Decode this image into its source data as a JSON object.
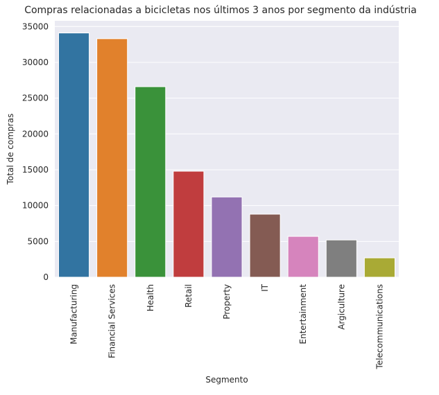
{
  "chart_data": {
    "type": "bar",
    "title": "Compras relacionadas a bicicletas nos últimos 3 anos por segmento da indústria",
    "xlabel": "Segmento",
    "ylabel": "Total de compras",
    "categories": [
      "Manufacturing",
      "Financial Services",
      "Health",
      "Retail",
      "Property",
      "IT",
      "Entertainment",
      "Argiculture",
      "Telecommunications"
    ],
    "values": [
      34100,
      33300,
      26600,
      14800,
      11200,
      8800,
      5700,
      5200,
      2700
    ],
    "colors": [
      "#3274a1",
      "#e1812c",
      "#3a923a",
      "#c03d3e",
      "#9372b2",
      "#845b53",
      "#d684bd",
      "#7f7f7f",
      "#a9aa35"
    ],
    "ylim": [
      0,
      35800
    ],
    "yticks": [
      0,
      5000,
      10000,
      15000,
      20000,
      25000,
      30000,
      35000
    ],
    "ytick_labels": [
      "0",
      "5000",
      "10000",
      "15000",
      "20000",
      "25000",
      "30000",
      "35000"
    ],
    "grid": true,
    "legend": "none"
  }
}
